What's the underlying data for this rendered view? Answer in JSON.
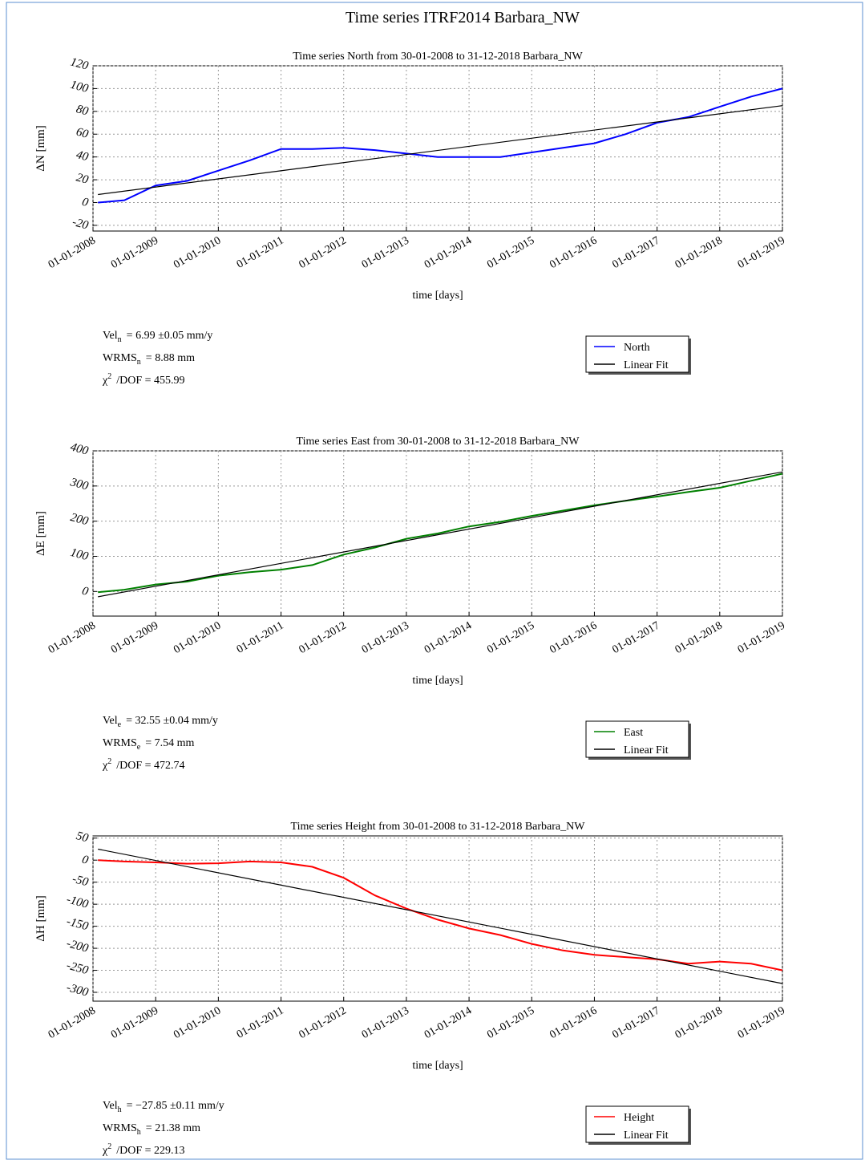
{
  "title": "Time series ITRF2014 Barbara_NW",
  "chart_data": [
    {
      "type": "line",
      "title": "Time series North from 30-01-2008 to 31-12-2018 Barbara_NW",
      "xlabel": "time [days]",
      "ylabel": "ΔN  [mm]",
      "xlim": [
        "01-01-2008",
        "01-01-2019"
      ],
      "xticks": [
        "01-01-2008",
        "01-01-2009",
        "01-01-2010",
        "01-01-2011",
        "01-01-2012",
        "01-01-2013",
        "01-01-2014",
        "01-01-2015",
        "01-01-2016",
        "01-01-2017",
        "01-01-2018",
        "01-01-2019"
      ],
      "ylim": [
        -25,
        120
      ],
      "yticks": [
        -20,
        0,
        20,
        40,
        60,
        80,
        100,
        120
      ],
      "grid": true,
      "series": [
        {
          "name": "North",
          "color": "#0000ff",
          "x": [
            "30-01-2008",
            "01-07-2008",
            "01-01-2009",
            "01-07-2009",
            "01-01-2010",
            "01-07-2010",
            "01-01-2011",
            "01-07-2011",
            "01-01-2012",
            "01-07-2012",
            "01-01-2013",
            "01-07-2013",
            "01-01-2014",
            "01-07-2014",
            "01-01-2015",
            "01-07-2015",
            "01-01-2016",
            "01-07-2016",
            "01-01-2017",
            "01-07-2017",
            "01-01-2018",
            "01-07-2018",
            "31-12-2018"
          ],
          "values": [
            0,
            2,
            15,
            19,
            28,
            37,
            47,
            47,
            48,
            46,
            43,
            40,
            40,
            40,
            44,
            48,
            52,
            60,
            70,
            75,
            84,
            93,
            100
          ]
        },
        {
          "name": "Linear Fit",
          "color": "#000000",
          "x": [
            "30-01-2008",
            "31-12-2018"
          ],
          "values": [
            7,
            85
          ]
        }
      ],
      "stats": [
        {
          "label": "Vel",
          "sub": "n",
          "text": "=  6.99 ±0.05  mm/y"
        },
        {
          "label": "WRMS",
          "sub": "n",
          "text": "=  8.88  mm"
        },
        {
          "label": "χ",
          "sup": "2",
          "text": "/DOF  =  455.99"
        }
      ]
    },
    {
      "type": "line",
      "title": "Time series East from 30-01-2008 to 31-12-2018 Barbara_NW",
      "xlabel": "time [days]",
      "ylabel": "ΔE  [mm]",
      "xlim": [
        "01-01-2008",
        "01-01-2019"
      ],
      "xticks": [
        "01-01-2008",
        "01-01-2009",
        "01-01-2010",
        "01-01-2011",
        "01-01-2012",
        "01-01-2013",
        "01-01-2014",
        "01-01-2015",
        "01-01-2016",
        "01-01-2017",
        "01-01-2018",
        "01-01-2019"
      ],
      "ylim": [
        -70,
        400
      ],
      "yticks": [
        0,
        100,
        200,
        300,
        400
      ],
      "grid": true,
      "series": [
        {
          "name": "East",
          "color": "#008000",
          "x": [
            "30-01-2008",
            "01-07-2008",
            "01-01-2009",
            "01-07-2009",
            "01-01-2010",
            "01-07-2010",
            "01-01-2011",
            "01-07-2011",
            "01-01-2012",
            "01-07-2012",
            "01-01-2013",
            "01-07-2013",
            "01-01-2014",
            "01-07-2014",
            "01-01-2015",
            "01-07-2015",
            "01-01-2016",
            "01-07-2016",
            "01-01-2017",
            "01-07-2017",
            "01-01-2018",
            "01-07-2018",
            "31-12-2018"
          ],
          "values": [
            -2,
            5,
            20,
            28,
            45,
            55,
            62,
            75,
            105,
            125,
            150,
            165,
            185,
            198,
            215,
            230,
            245,
            258,
            270,
            283,
            295,
            315,
            335
          ]
        },
        {
          "name": "Linear Fit",
          "color": "#000000",
          "x": [
            "30-01-2008",
            "31-12-2018"
          ],
          "values": [
            -15,
            340
          ]
        }
      ],
      "stats": [
        {
          "label": "Vel",
          "sub": "e",
          "text": "=  32.55 ±0.04  mm/y"
        },
        {
          "label": "WRMS",
          "sub": "e",
          "text": "=  7.54  mm"
        },
        {
          "label": "χ",
          "sup": "2",
          "text": "/DOF  =  472.74"
        }
      ]
    },
    {
      "type": "line",
      "title": "Time series Height from 30-01-2008 to 31-12-2018 Barbara_NW",
      "xlabel": "time [days]",
      "ylabel": "ΔH  [mm]",
      "xlim": [
        "01-01-2008",
        "01-01-2019"
      ],
      "xticks": [
        "01-01-2008",
        "01-01-2009",
        "01-01-2010",
        "01-01-2011",
        "01-01-2012",
        "01-01-2013",
        "01-01-2014",
        "01-01-2015",
        "01-01-2016",
        "01-01-2017",
        "01-01-2018",
        "01-01-2019"
      ],
      "ylim": [
        -320,
        55
      ],
      "yticks": [
        -300,
        -250,
        -200,
        -150,
        -100,
        -50,
        0,
        50
      ],
      "grid": true,
      "series": [
        {
          "name": "Height",
          "color": "#ff0000",
          "x": [
            "30-01-2008",
            "01-07-2008",
            "01-01-2009",
            "01-07-2009",
            "01-01-2010",
            "01-07-2010",
            "01-01-2011",
            "01-07-2011",
            "01-01-2012",
            "01-07-2012",
            "01-01-2013",
            "01-07-2013",
            "01-01-2014",
            "01-07-2014",
            "01-01-2015",
            "01-07-2015",
            "01-01-2016",
            "01-07-2016",
            "01-01-2017",
            "01-07-2017",
            "01-01-2018",
            "01-07-2018",
            "31-12-2018"
          ],
          "values": [
            0,
            -3,
            -5,
            -8,
            -7,
            -3,
            -5,
            -15,
            -40,
            -80,
            -110,
            -135,
            -155,
            -170,
            -190,
            -205,
            -215,
            -220,
            -225,
            -235,
            -230,
            -235,
            -250
          ]
        },
        {
          "name": "Linear Fit",
          "color": "#000000",
          "x": [
            "30-01-2008",
            "31-12-2018"
          ],
          "values": [
            25,
            -280
          ]
        }
      ],
      "stats": [
        {
          "label": "Vel",
          "sub": "h",
          "text": "=  −27.85 ±0.11  mm/y"
        },
        {
          "label": "WRMS",
          "sub": "h",
          "text": "=  21.38  mm"
        },
        {
          "label": "χ",
          "sup": "2",
          "text": "/DOF  =  229.13"
        }
      ]
    }
  ]
}
